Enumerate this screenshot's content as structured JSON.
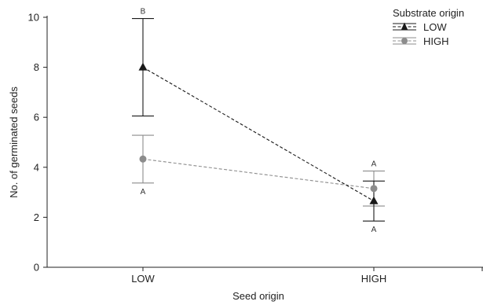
{
  "chart_data": {
    "type": "line",
    "title": "",
    "xlabel": "Seed origin",
    "ylabel": "No. of germinated seeds",
    "categories": [
      "LOW",
      "HIGH"
    ],
    "ylim": [
      0,
      10
    ],
    "yticks": [
      0,
      2,
      4,
      6,
      8,
      10
    ],
    "grid": false,
    "legend": {
      "title": "Substrate origin",
      "placement": "top-right"
    },
    "series": [
      {
        "name": "LOW",
        "values": [
          8.0,
          2.65
        ],
        "error_low": [
          6.05,
          1.85
        ],
        "error_high": [
          9.95,
          3.45
        ],
        "sig_labels": [
          "B",
          "A"
        ],
        "sig_position": [
          "above",
          "below"
        ],
        "marker": "triangle",
        "color": "#1a1a1a",
        "dash": "dashed"
      },
      {
        "name": "HIGH",
        "values": [
          4.33,
          3.15
        ],
        "error_low": [
          3.37,
          2.45
        ],
        "error_high": [
          5.28,
          3.85
        ],
        "sig_labels": [
          "A",
          "A"
        ],
        "sig_position": [
          "below",
          "above"
        ],
        "marker": "circle",
        "color": "#8c8c8c",
        "dash": "dashed"
      }
    ]
  }
}
